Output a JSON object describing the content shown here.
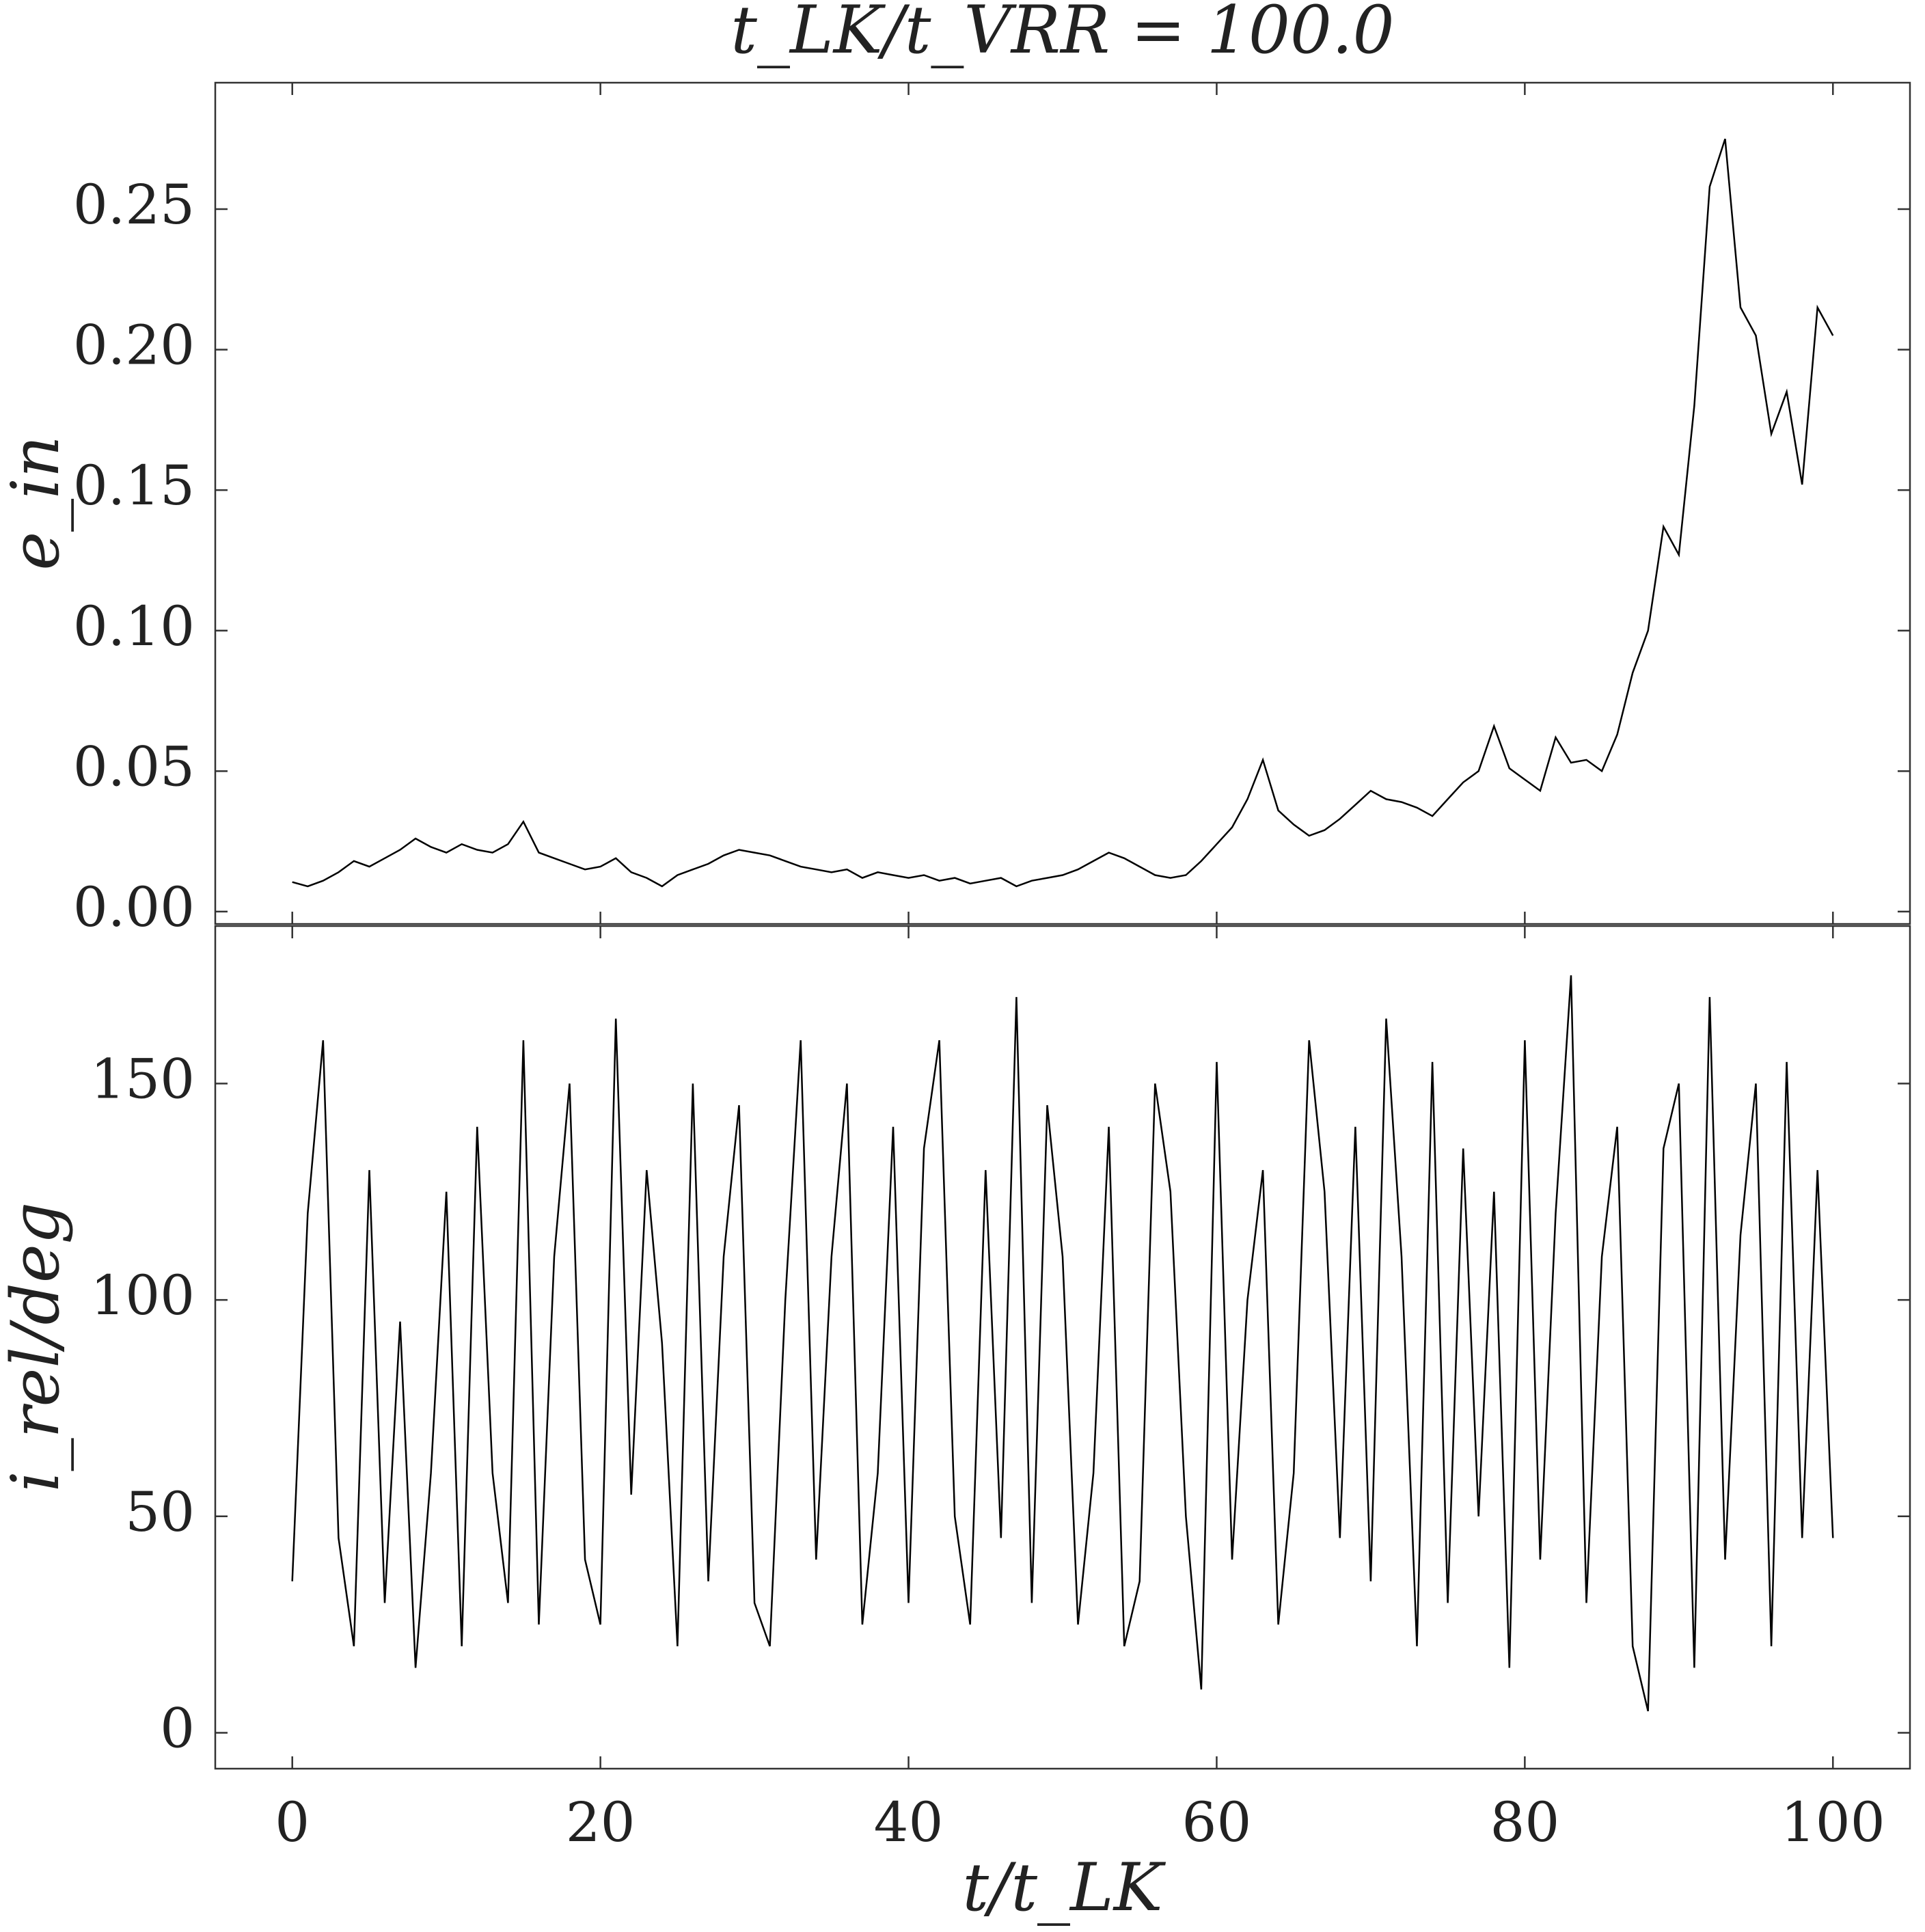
{
  "chart_data": [
    {
      "type": "line",
      "title": "t_LK/t_VRR = 100.0",
      "ylabel": "e_in",
      "x": [
        0,
        1,
        2,
        3,
        4,
        5,
        6,
        7,
        8,
        9,
        10,
        11,
        12,
        13,
        14,
        15,
        16,
        17,
        18,
        19,
        20,
        21,
        22,
        23,
        24,
        25,
        26,
        27,
        28,
        29,
        30,
        31,
        32,
        33,
        34,
        35,
        36,
        37,
        38,
        39,
        40,
        41,
        42,
        43,
        44,
        45,
        46,
        47,
        48,
        49,
        50,
        51,
        52,
        53,
        54,
        55,
        56,
        57,
        58,
        59,
        60,
        61,
        62,
        63,
        64,
        65,
        66,
        67,
        68,
        69,
        70,
        71,
        72,
        73,
        74,
        75,
        76,
        77,
        78,
        79,
        80,
        81,
        82,
        83,
        84,
        85,
        86,
        87,
        88,
        89,
        90,
        91,
        92,
        93,
        94,
        95,
        96,
        97,
        98,
        99,
        100
      ],
      "series": [
        {
          "color": "#000000",
          "values": [
            0.0105,
            0.009,
            0.011,
            0.014,
            0.018,
            0.016,
            0.019,
            0.022,
            0.026,
            0.023,
            0.021,
            0.024,
            0.022,
            0.021,
            0.024,
            0.032,
            0.021,
            0.019,
            0.017,
            0.015,
            0.016,
            0.019,
            0.014,
            0.012,
            0.009,
            0.013,
            0.015,
            0.017,
            0.02,
            0.022,
            0.021,
            0.02,
            0.018,
            0.016,
            0.015,
            0.014,
            0.015,
            0.012,
            0.014,
            0.013,
            0.012,
            0.013,
            0.011,
            0.012,
            0.01,
            0.011,
            0.012,
            0.009,
            0.011,
            0.012,
            0.013,
            0.015,
            0.018,
            0.021,
            0.019,
            0.016,
            0.013,
            0.012,
            0.013,
            0.018,
            0.024,
            0.03,
            0.04,
            0.054,
            0.036,
            0.031,
            0.027,
            0.029,
            0.033,
            0.038,
            0.043,
            0.04,
            0.039,
            0.037,
            0.034,
            0.04,
            0.046,
            0.05,
            0.066,
            0.051,
            0.047,
            0.043,
            0.062,
            0.053,
            0.054,
            0.05,
            0.063,
            0.085,
            0.1,
            0.137,
            0.127,
            0.18,
            0.258,
            0.275,
            0.215,
            0.205,
            0.17,
            0.185,
            0.152,
            0.215,
            0.205
          ]
        }
      ],
      "xlim": [
        -5,
        105
      ],
      "ylim": [
        -0.0044,
        0.295
      ],
      "xticks": [
        0,
        20,
        40,
        60,
        80,
        100
      ],
      "yticks": [
        {
          "value": 0,
          "label": "0.00"
        },
        0.05,
        {
          "value": 0.1,
          "label": "0.10"
        },
        0.15,
        {
          "value": 0.2,
          "label": "0.20"
        },
        0.25
      ]
    },
    {
      "type": "line",
      "ylabel": "i_rel/deg",
      "xlabel": "t/t_LK",
      "x": [
        0,
        1,
        2,
        3,
        4,
        5,
        6,
        7,
        8,
        9,
        10,
        11,
        12,
        13,
        14,
        15,
        16,
        17,
        18,
        19,
        20,
        21,
        22,
        23,
        24,
        25,
        26,
        27,
        28,
        29,
        30,
        31,
        32,
        33,
        34,
        35,
        36,
        37,
        38,
        39,
        40,
        41,
        42,
        43,
        44,
        45,
        46,
        47,
        48,
        49,
        50,
        51,
        52,
        53,
        54,
        55,
        56,
        57,
        58,
        59,
        60,
        61,
        62,
        63,
        64,
        65,
        66,
        67,
        68,
        69,
        70,
        71,
        72,
        73,
        74,
        75,
        76,
        77,
        78,
        79,
        80,
        81,
        82,
        83,
        84,
        85,
        86,
        87,
        88,
        89,
        90,
        91,
        92,
        93,
        94,
        95,
        96,
        97,
        98,
        99,
        100
      ],
      "series": [
        {
          "color": "#000000",
          "values": [
            35,
            120,
            160,
            45,
            20,
            130,
            30,
            95,
            15,
            60,
            125,
            20,
            140,
            60,
            30,
            160,
            25,
            110,
            150,
            40,
            25,
            165,
            55,
            130,
            90,
            20,
            150,
            35,
            110,
            145,
            30,
            20,
            100,
            160,
            40,
            110,
            150,
            25,
            60,
            140,
            30,
            135,
            160,
            50,
            25,
            130,
            45,
            170,
            30,
            145,
            110,
            25,
            60,
            140,
            20,
            35,
            150,
            125,
            50,
            10,
            155,
            40,
            100,
            130,
            25,
            60,
            160,
            125,
            45,
            140,
            35,
            165,
            110,
            20,
            155,
            30,
            135,
            50,
            125,
            15,
            160,
            40,
            120,
            175,
            30,
            110,
            140,
            20,
            5,
            135,
            150,
            15,
            170,
            40,
            115,
            150,
            20,
            155,
            45,
            130,
            45
          ]
        }
      ],
      "xlim": [
        -5,
        105
      ],
      "ylim": [
        -8.3,
        186.4
      ],
      "xticks": [
        0,
        20,
        40,
        60,
        80,
        100
      ],
      "yticks": [
        0,
        50,
        100,
        150
      ]
    }
  ]
}
